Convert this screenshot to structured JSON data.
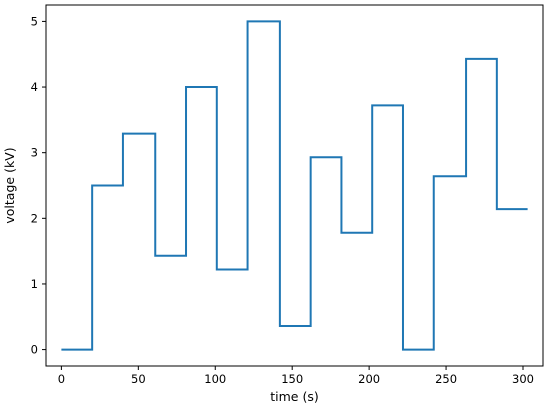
{
  "chart_data": {
    "type": "line",
    "step": "post",
    "xlabel": "time (s)",
    "ylabel": "voltage (kV)",
    "xlim": [
      -10,
      313
    ],
    "ylim": [
      -0.25,
      5.25
    ],
    "xticks": [
      0,
      50,
      100,
      150,
      200,
      250,
      300
    ],
    "yticks": [
      0,
      1,
      2,
      3,
      4,
      5
    ],
    "grid": false,
    "line_color": "#1f77b4",
    "series": [
      {
        "x": [
          0,
          20,
          40,
          61,
          81,
          101,
          121,
          142,
          162,
          182,
          202,
          222,
          242,
          263,
          283,
          303
        ],
        "y": [
          0.0,
          2.5,
          3.29,
          1.43,
          4.0,
          1.22,
          5.0,
          0.36,
          2.93,
          1.78,
          3.72,
          0.0,
          2.64,
          4.43,
          2.14,
          2.14
        ]
      }
    ]
  }
}
